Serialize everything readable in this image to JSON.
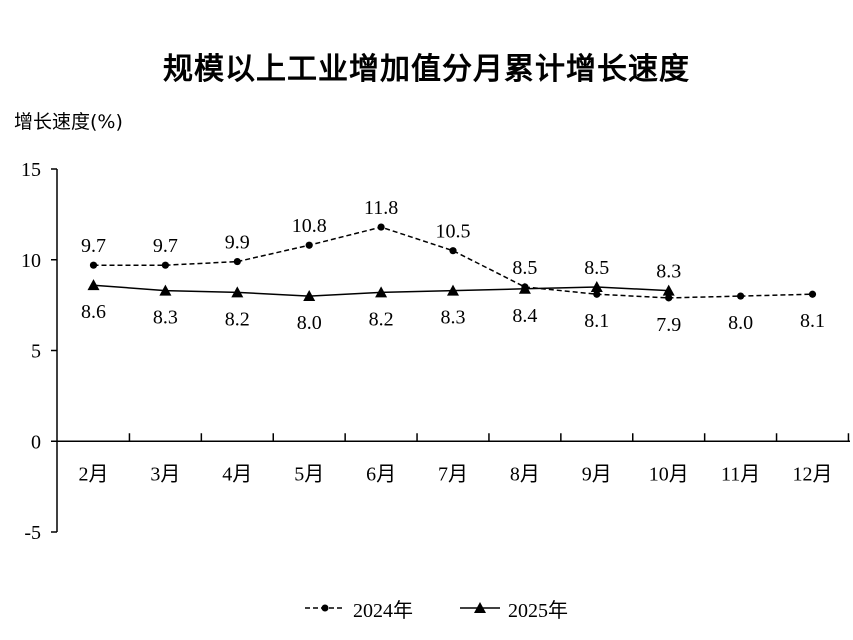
{
  "chart_data": {
    "type": "line",
    "title": "规模以上工业增加值分月累计增长速度",
    "ylabel": "增长速度(%)",
    "xlabel": "",
    "categories": [
      "2月",
      "3月",
      "4月",
      "5月",
      "6月",
      "7月",
      "8月",
      "9月",
      "10月",
      "11月",
      "12月"
    ],
    "ylim": [
      -5,
      15
    ],
    "yticks": [
      "15",
      "10",
      "5",
      "0",
      "-5"
    ],
    "grid": false,
    "legend_position": "bottom-center",
    "series": [
      {
        "name": "2024年",
        "style": "dashed",
        "marker": "circle",
        "values": [
          9.7,
          9.7,
          9.9,
          10.8,
          11.8,
          10.5,
          8.5,
          8.1,
          7.9,
          8.0,
          8.1
        ],
        "labels": [
          "9.7",
          "9.7",
          "9.9",
          "10.8",
          "11.8",
          "10.5",
          "8.5",
          "8.1",
          "7.9",
          "8.0",
          "8.1"
        ]
      },
      {
        "name": "2025年",
        "style": "solid",
        "marker": "triangle",
        "values": [
          8.6,
          8.3,
          8.2,
          8.0,
          8.2,
          8.3,
          8.4,
          8.5,
          8.3,
          null,
          null
        ],
        "labels": [
          "8.6",
          "8.3",
          "8.2",
          "8.0",
          "8.2",
          "8.3",
          "8.4",
          "8.5",
          "8.3",
          null,
          null
        ]
      }
    ]
  },
  "colors": {
    "line": "#000000"
  }
}
